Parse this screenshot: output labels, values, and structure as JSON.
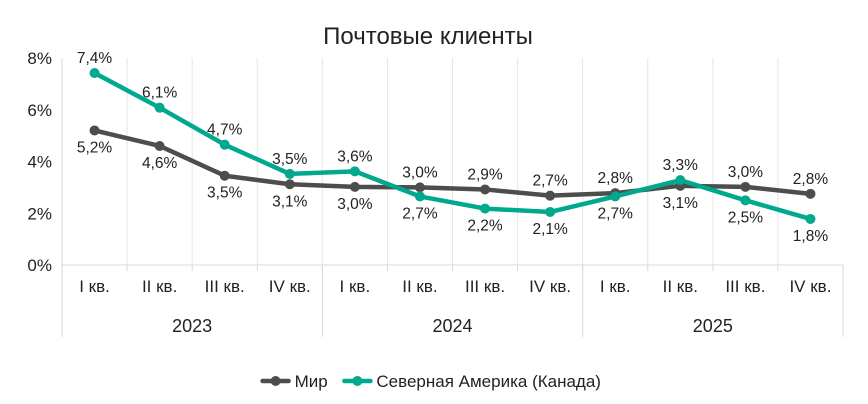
{
  "chart_data": {
    "type": "line",
    "title": "Почтовые клиенты",
    "xlabel": "",
    "ylabel": "",
    "categories": [
      "I кв.",
      "II кв.",
      "III кв.",
      "IV кв.",
      "I кв.",
      "II кв.",
      "III кв.",
      "IV кв.",
      "I кв.",
      "II кв.",
      "III кв.",
      "IV кв."
    ],
    "groups": [
      {
        "label": "2023",
        "start": 0,
        "count": 4
      },
      {
        "label": "2024",
        "start": 4,
        "count": 4
      },
      {
        "label": "2025",
        "start": 8,
        "count": 4
      }
    ],
    "yticks": [
      "0%",
      "2%",
      "4%",
      "6%",
      "8%"
    ],
    "ylim": [
      0,
      8
    ],
    "grid": "vertical",
    "legend_position": "bottom",
    "series": [
      {
        "name": "Мир",
        "color": "#4d4d4d",
        "values": [
          5.2,
          4.6,
          3.45,
          3.12,
          3.02,
          3.0,
          2.92,
          2.68,
          2.78,
          3.06,
          3.02,
          2.75
        ],
        "labels": [
          "5,2%",
          "4,6%",
          "3,5%",
          "3,1%",
          "3,0%",
          "3,0%",
          "2,9%",
          "2,7%",
          "2,8%",
          "3,1%",
          "3,0%",
          "2,8%"
        ],
        "label_pos": [
          "below",
          "below",
          "below",
          "below",
          "below",
          "above",
          "above",
          "above",
          "above",
          "below",
          "above",
          "above"
        ]
      },
      {
        "name": "Северная Америка (Канада)",
        "color": "#00a88e",
        "values": [
          7.42,
          6.08,
          4.65,
          3.52,
          3.62,
          2.65,
          2.18,
          2.05,
          2.65,
          3.28,
          2.5,
          1.78
        ],
        "labels": [
          "7,4%",
          "6,1%",
          "4,7%",
          "3,5%",
          "3,6%",
          "2,7%",
          "2,2%",
          "2,1%",
          "2,7%",
          "3,3%",
          "2,5%",
          "1,8%"
        ],
        "label_pos": [
          "above",
          "above",
          "above",
          "above",
          "above",
          "below",
          "below",
          "below",
          "below",
          "above",
          "below",
          "below"
        ]
      }
    ]
  }
}
